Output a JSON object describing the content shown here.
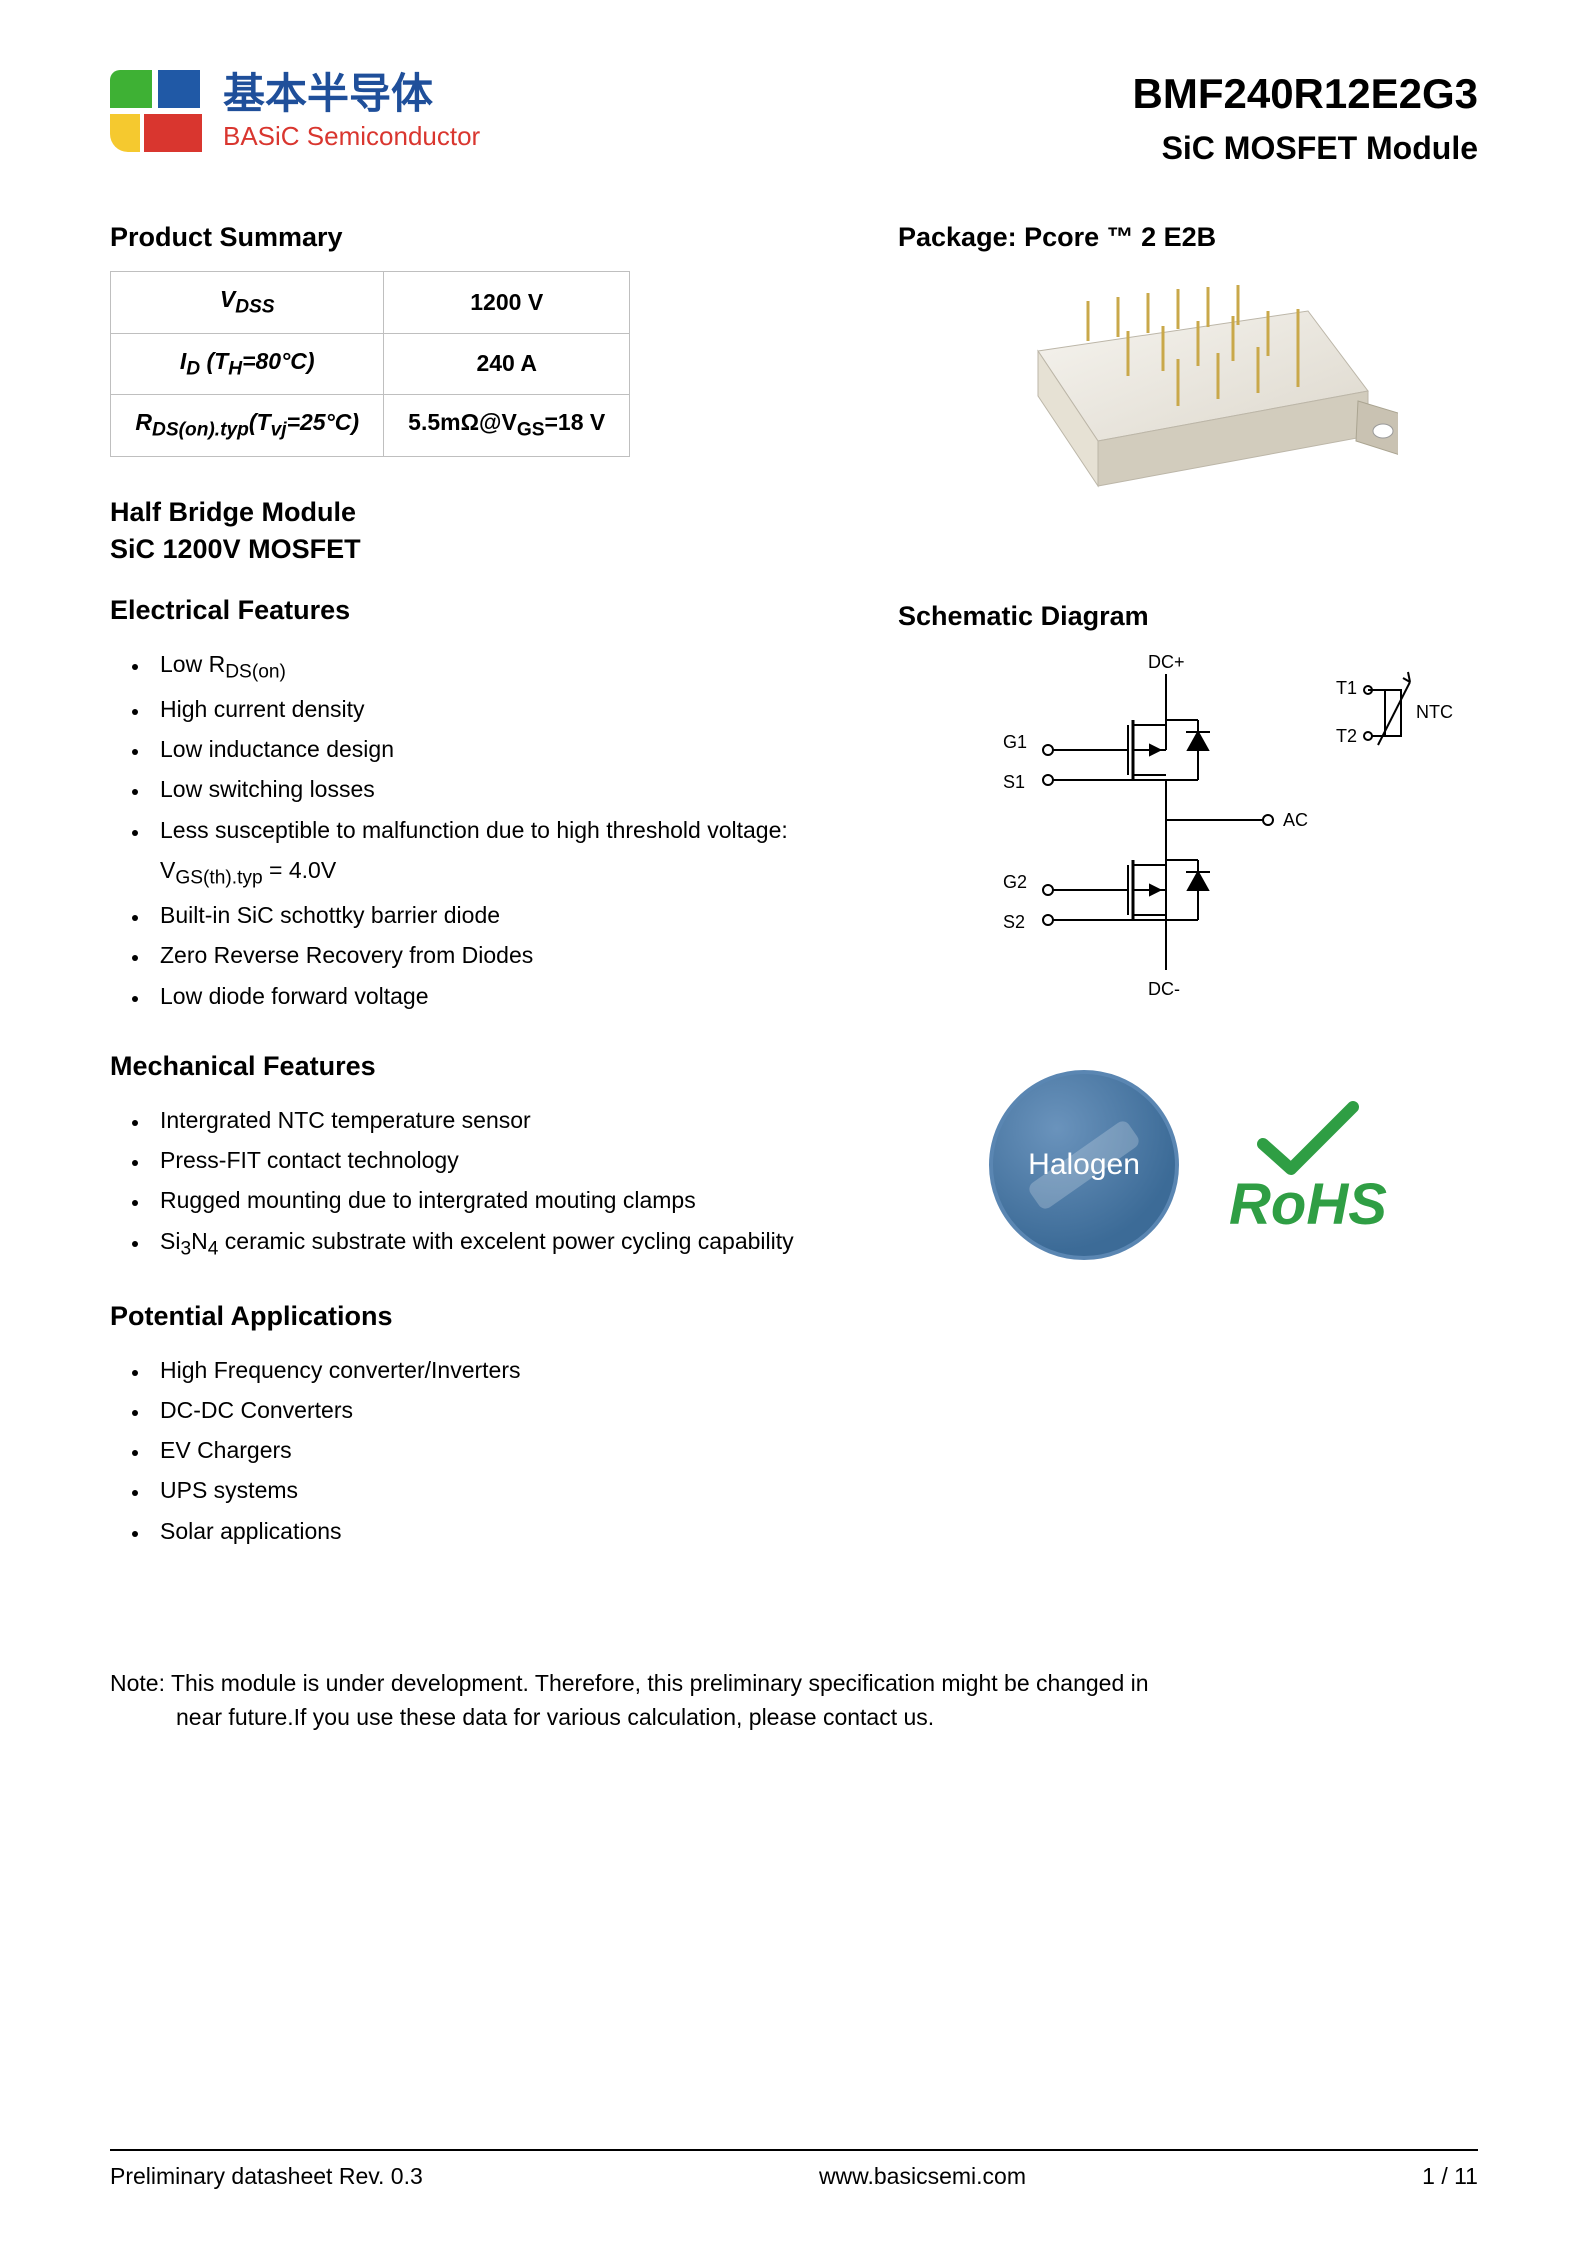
{
  "logo": {
    "cn": "基本半导体",
    "en": "BASiC Semiconductor"
  },
  "part": {
    "number": "BMF240R12E2G3",
    "subtitle": "SiC MOSFET Module"
  },
  "summary": {
    "title": "Product Summary",
    "rows": [
      {
        "param_html": "V<sub>DSS</sub>",
        "value": "1200 V"
      },
      {
        "param_html": "I<sub>D</sub> (T<sub>H</sub>=80°C)",
        "value": "240 A"
      },
      {
        "param_html": "R<sub>DS(on).typ</sub>(T<sub>vj</sub>=25°C)",
        "value_html": "5.5mΩ@V<sub>GS</sub>=18 V"
      }
    ]
  },
  "module": {
    "line1": "Half Bridge Module",
    "line2": "SiC 1200V MOSFET"
  },
  "electrical": {
    "title": "Electrical Features",
    "items": [
      "Low R<sub>DS(on)</sub>",
      "High current density",
      "Low inductance design",
      "Low switching losses",
      "Less susceptible to malfunction due to high threshold voltage: V<sub>GS(th).typ</sub> = 4.0V",
      "Built-in SiC schottky barrier diode",
      "Zero Reverse Recovery from Diodes",
      "Low diode forward voltage"
    ]
  },
  "mechanical": {
    "title": "Mechanical Features",
    "items": [
      "Intergrated NTC temperature sensor",
      "Press-FIT contact technology",
      "Rugged mounting due to intergrated mouting clamps",
      "Si<sub>3</sub>N<sub>4</sub> ceramic substrate with excelent power cycling capability"
    ]
  },
  "applications": {
    "title": "Potential Applications",
    "items": [
      "High Frequency converter/Inverters",
      "DC-DC Converters",
      "EV Chargers",
      "UPS systems",
      "Solar applications"
    ]
  },
  "package": {
    "title": "Package: Pcore ™ 2 E2B"
  },
  "schematic": {
    "title": "Schematic Diagram",
    "labels": {
      "dcp": "DC+",
      "dcm": "DC-",
      "g1": "G1",
      "s1": "S1",
      "g2": "G2",
      "s2": "S2",
      "ac": "AC",
      "t1": "T1",
      "t2": "T2",
      "ntc": "NTC"
    },
    "colors": {
      "stroke": "#000000",
      "fill_none": "none"
    }
  },
  "badges": {
    "halogen": "Halogen",
    "rohs": "RoHS",
    "rohs_color": "#2f9e44",
    "check_color": "#2f9e44"
  },
  "note": {
    "prefix": "Note: ",
    "line1": "This module is under development. Therefore, this preliminary specification might be changed in",
    "line2": "near future.If you use these data for various calculation, please contact us."
  },
  "footer": {
    "left": "Preliminary datasheet Rev. 0.3",
    "center": "www.basicsemi.com",
    "right": "1  /  11"
  },
  "colors": {
    "text": "#000000",
    "logo_blue": "#1f4f9a",
    "logo_red": "#d9362f",
    "table_border": "#bfbfbf",
    "background": "#ffffff"
  }
}
